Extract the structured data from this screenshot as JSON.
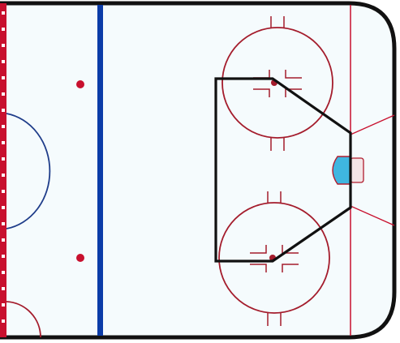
{
  "diagram": {
    "kind": "hockey-rink-offensive-zone",
    "features": {
      "center_line": "red dashed",
      "blue_line": true,
      "center_circle_partial": true,
      "neutral_zone_dots": 2,
      "faceoff_circles": 2,
      "goal_crease": true,
      "highlight_shape": "home plate / slot area"
    },
    "colors": {
      "ice": "#f5fbfd",
      "boards": "#111111",
      "red_line": "#c8102e",
      "blue_line": "#0b3ca8",
      "faceoff": "#a41c2c",
      "crease_fill": "#3fb6e0",
      "crease_outline": "#b01c2e",
      "zone_shape": "#111111",
      "center_circle": "#1f3d8a"
    }
  }
}
